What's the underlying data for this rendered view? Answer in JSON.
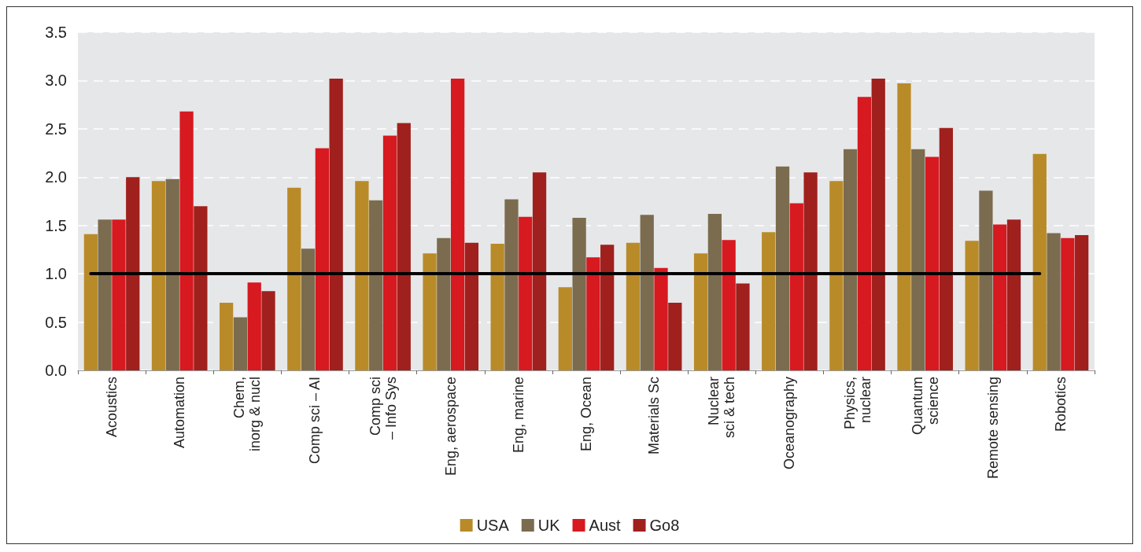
{
  "chart_data": {
    "type": "bar",
    "categories": [
      "Acoustics",
      "Automation",
      "Chem,\ninorg & nucl",
      "Comp sci – AI",
      "Comp sci\n– Info Sys",
      "Eng, aerospace",
      "Eng, marine",
      "Eng, Ocean",
      "Materials Sc",
      "Nuclear\nsci & tech",
      "Oceanography",
      "Physics,\nnuclear",
      "Quantum\nscience",
      "Remote sensing",
      "Robotics"
    ],
    "series": [
      {
        "name": "USA",
        "color": "#b98b28",
        "values": [
          1.41,
          1.96,
          0.7,
          1.89,
          1.96,
          1.21,
          1.31,
          0.86,
          1.32,
          1.21,
          1.43,
          1.96,
          2.97,
          1.34,
          2.24
        ]
      },
      {
        "name": "UK",
        "color": "#7b6c4f",
        "values": [
          1.56,
          1.98,
          0.55,
          1.26,
          1.76,
          1.37,
          1.77,
          1.58,
          1.61,
          1.62,
          2.11,
          2.29,
          2.29,
          1.86,
          1.42
        ]
      },
      {
        "name": "Aust",
        "color": "#d71920",
        "values": [
          1.56,
          2.68,
          0.91,
          2.3,
          2.43,
          3.02,
          1.59,
          1.17,
          1.06,
          1.35,
          1.73,
          2.83,
          2.21,
          1.51,
          1.37
        ]
      },
      {
        "name": "Go8",
        "color": "#a0201d",
        "values": [
          2.0,
          1.7,
          0.82,
          3.02,
          2.56,
          1.32,
          2.05,
          1.3,
          0.7,
          0.9,
          2.05,
          3.02,
          2.51,
          1.56,
          1.4
        ]
      }
    ],
    "ylim": [
      0,
      3.5
    ],
    "yticks": [
      {
        "value": 0,
        "label": "0.0"
      },
      {
        "value": 0.5,
        "label": "0.5"
      },
      {
        "value": 1,
        "label": "1.0"
      },
      {
        "value": 1.5,
        "label": "1.5"
      },
      {
        "value": 2,
        "label": "2.0"
      },
      {
        "value": 2.5,
        "label": "2.5"
      },
      {
        "value": 3,
        "label": "3.0"
      },
      {
        "value": 3.5,
        "label": "3.5"
      }
    ],
    "ref_lines": [
      {
        "axis": "y",
        "value": 1,
        "color": "#000000"
      }
    ],
    "grid": "y",
    "legend": "bottom"
  }
}
